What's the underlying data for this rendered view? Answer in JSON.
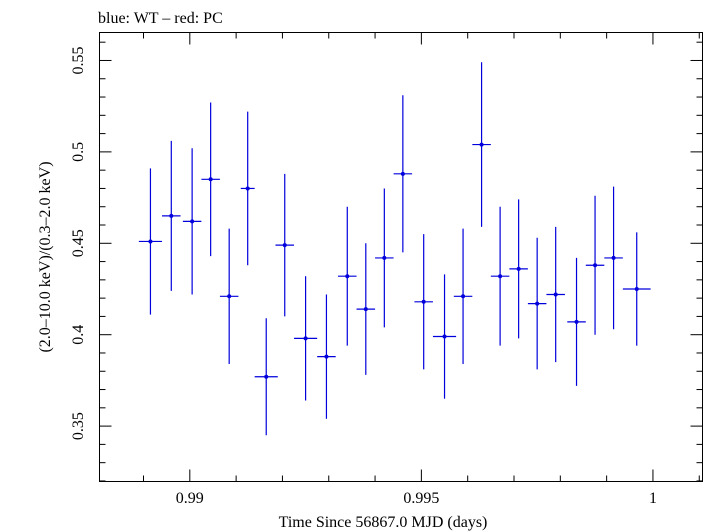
{
  "chart_data": {
    "type": "scatter",
    "title": "blue: WT – red: PC",
    "xlabel": "Time Since 56867.0 MJD (days)",
    "ylabel": "(2.0–10.0 keV)/(0.3–2.0 keV)",
    "xlim": [
      0.98805,
      1.00107
    ],
    "ylim": [
      0.3197,
      0.5653
    ],
    "x_ticks": [
      0.99,
      0.995,
      1
    ],
    "x_tick_labels": [
      "0.99",
      "0.995",
      "1"
    ],
    "y_ticks": [
      0.35,
      0.4,
      0.45,
      0.5,
      0.55
    ],
    "y_tick_labels": [
      "0.35",
      "0.4",
      "0.45",
      "0.5",
      "0.55"
    ],
    "grid": false,
    "series": [
      {
        "color": "#0000dd",
        "points": [
          {
            "x": 0.98915,
            "xerr": 0.00025,
            "y": 0.451,
            "yerr": 0.04
          },
          {
            "x": 0.9896,
            "xerr": 0.0002,
            "y": 0.465,
            "yerr": 0.041
          },
          {
            "x": 0.99005,
            "xerr": 0.0002,
            "y": 0.462,
            "yerr": 0.04
          },
          {
            "x": 0.99045,
            "xerr": 0.0002,
            "y": 0.485,
            "yerr": 0.042
          },
          {
            "x": 0.99085,
            "xerr": 0.0002,
            "y": 0.421,
            "yerr": 0.037
          },
          {
            "x": 0.99125,
            "xerr": 0.00015,
            "y": 0.48,
            "yerr": 0.042
          },
          {
            "x": 0.99165,
            "xerr": 0.00025,
            "y": 0.377,
            "yerr": 0.032
          },
          {
            "x": 0.99205,
            "xerr": 0.0002,
            "y": 0.449,
            "yerr": 0.039
          },
          {
            "x": 0.9925,
            "xerr": 0.00025,
            "y": 0.398,
            "yerr": 0.034
          },
          {
            "x": 0.99295,
            "xerr": 0.0002,
            "y": 0.388,
            "yerr": 0.034
          },
          {
            "x": 0.9934,
            "xerr": 0.0002,
            "y": 0.432,
            "yerr": 0.038
          },
          {
            "x": 0.9938,
            "xerr": 0.0002,
            "y": 0.414,
            "yerr": 0.036
          },
          {
            "x": 0.9942,
            "xerr": 0.0002,
            "y": 0.442,
            "yerr": 0.038
          },
          {
            "x": 0.9946,
            "xerr": 0.0002,
            "y": 0.488,
            "yerr": 0.043
          },
          {
            "x": 0.99505,
            "xerr": 0.0002,
            "y": 0.418,
            "yerr": 0.037
          },
          {
            "x": 0.9955,
            "xerr": 0.00025,
            "y": 0.399,
            "yerr": 0.034
          },
          {
            "x": 0.9959,
            "xerr": 0.0002,
            "y": 0.421,
            "yerr": 0.037
          },
          {
            "x": 0.9963,
            "xerr": 0.0002,
            "y": 0.504,
            "yerr": 0.045
          },
          {
            "x": 0.9967,
            "xerr": 0.0002,
            "y": 0.432,
            "yerr": 0.038
          },
          {
            "x": 0.9971,
            "xerr": 0.0002,
            "y": 0.436,
            "yerr": 0.038
          },
          {
            "x": 0.9975,
            "xerr": 0.0002,
            "y": 0.417,
            "yerr": 0.036
          },
          {
            "x": 0.9979,
            "xerr": 0.0002,
            "y": 0.422,
            "yerr": 0.037
          },
          {
            "x": 0.99835,
            "xerr": 0.0002,
            "y": 0.407,
            "yerr": 0.035
          },
          {
            "x": 0.99875,
            "xerr": 0.0002,
            "y": 0.438,
            "yerr": 0.038
          },
          {
            "x": 0.99915,
            "xerr": 0.0002,
            "y": 0.442,
            "yerr": 0.039
          },
          {
            "x": 0.99965,
            "xerr": 0.0003,
            "y": 0.425,
            "yerr": 0.031
          }
        ]
      }
    ]
  }
}
